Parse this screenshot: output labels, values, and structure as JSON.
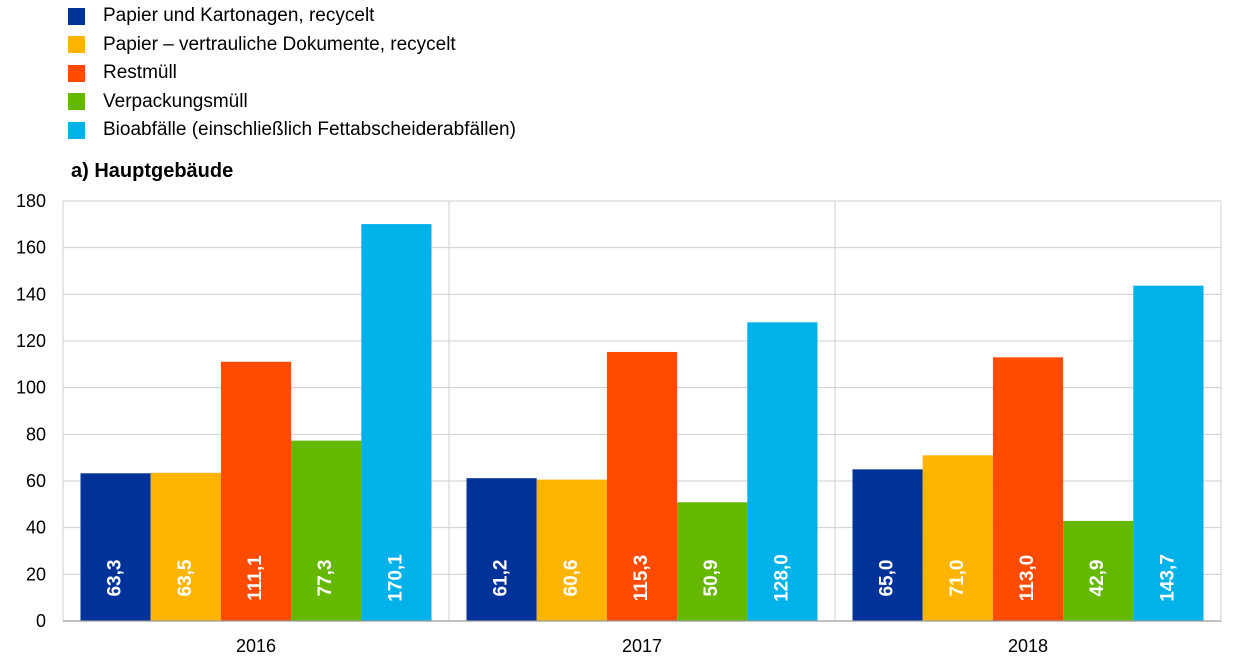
{
  "chart_data": {
    "type": "bar",
    "subtitle": "a) Hauptgebäude",
    "categories": [
      "2016",
      "2017",
      "2018"
    ],
    "series": [
      {
        "name": "Papier und Kartonagen, recycelt",
        "color": "#003299",
        "values": [
          63.3,
          61.2,
          65.0
        ],
        "labels": [
          "63,3",
          "61,2",
          "65,0"
        ]
      },
      {
        "name": "Papier – vertrauliche Dokumente, recycelt",
        "color": "#ffb400",
        "values": [
          63.5,
          60.6,
          71.0
        ],
        "labels": [
          "63,5",
          "60,6",
          "71,0"
        ]
      },
      {
        "name": "Restmüll",
        "color": "#ff4b00",
        "values": [
          111.1,
          115.3,
          113.0
        ],
        "labels": [
          "111,1",
          "115,3",
          "113,0"
        ]
      },
      {
        "name": "Verpackungsmüll",
        "color": "#65b800",
        "values": [
          77.3,
          50.9,
          42.9
        ],
        "labels": [
          "77,3",
          "50,9",
          "42,9"
        ]
      },
      {
        "name": "Bioabfälle (einschließlich Fettabscheiderabfällen)",
        "color": "#00b1ea",
        "values": [
          170.1,
          128.0,
          143.7
        ],
        "labels": [
          "170,1",
          "128,0",
          "143,7"
        ]
      }
    ],
    "ylim": [
      0,
      180
    ],
    "yticks": [
      "0",
      "20",
      "40",
      "60",
      "80",
      "100",
      "120",
      "140",
      "160",
      "180"
    ],
    "grid": true,
    "legend_position": "top-left"
  }
}
